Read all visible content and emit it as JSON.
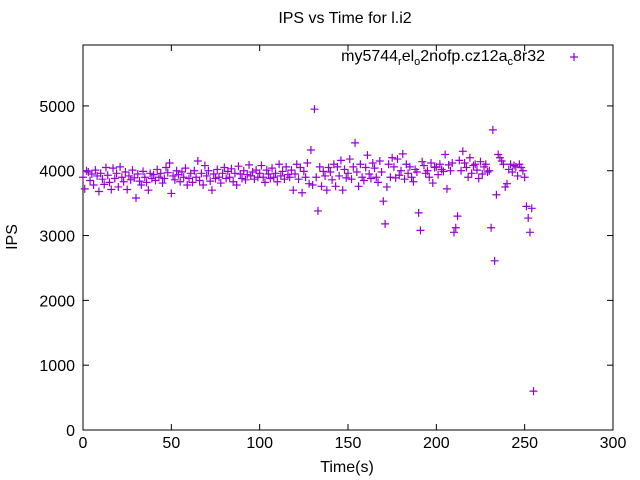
{
  "chart_data": {
    "type": "scatter",
    "title": "IPS vs Time for l.i2",
    "xlabel": "Time(s)",
    "ylabel": "IPS",
    "xlim": [
      0,
      300
    ],
    "ylim": [
      0,
      5940
    ],
    "xticks": [
      0,
      50,
      100,
      150,
      200,
      250,
      300
    ],
    "yticks": [
      0,
      1000,
      2000,
      3000,
      4000,
      5000
    ],
    "grid": false,
    "legend_position": "top-right",
    "series": [
      {
        "name": "my5744",
        "name_parts": [
          {
            "t": "my5744",
            "sub": false
          },
          {
            "t": "r",
            "sub": true
          },
          {
            "t": "el",
            "sub": false
          },
          {
            "t": "o",
            "sub": true
          },
          {
            "t": "2nofp.cz12a",
            "sub": false
          },
          {
            "t": "c",
            "sub": true
          },
          {
            "t": "8r32",
            "sub": false
          }
        ],
        "color": "#9400d3",
        "marker": "plus",
        "x_start": 0,
        "x_step": 1,
        "values": [
          3900,
          3720,
          4000,
          3980,
          3850,
          3950,
          3780,
          4010,
          3920,
          3680,
          3960,
          3870,
          3790,
          4050,
          3930,
          3820,
          3710,
          4040,
          3880,
          3960,
          3750,
          4060,
          3900,
          3830,
          3980,
          3710,
          3920,
          3860,
          4010,
          3890,
          3580,
          3950,
          3840,
          3780,
          3990,
          3900,
          3820,
          3700,
          3960,
          3880,
          3940,
          3850,
          4020,
          3900,
          3960,
          3810,
          3880,
          4050,
          3970,
          4120,
          3650,
          3920,
          3860,
          4000,
          3940,
          3830,
          3980,
          3900,
          4040,
          3780,
          3880,
          3960,
          3820,
          4000,
          3900,
          4150,
          3850,
          3960,
          3780,
          4080,
          3920,
          4000,
          3840,
          3700,
          3950,
          3880,
          4020,
          3900,
          3810,
          3960,
          4050,
          3880,
          3990,
          3900,
          4030,
          3830,
          3960,
          3780,
          4070,
          3950,
          3880,
          4000,
          3860,
          3940,
          4090,
          3920,
          3980,
          3870,
          4010,
          3900,
          3960,
          4080,
          3900,
          3820,
          4010,
          3950,
          3880,
          4040,
          3900,
          3960,
          3830,
          4100,
          3920,
          3990,
          3870,
          4060,
          3940,
          3900,
          4010,
          3700,
          3950,
          4100,
          3870,
          4050,
          3660,
          3990,
          3900,
          4120,
          3800,
          4320,
          3780,
          4950,
          3900,
          3380,
          4060,
          3760,
          3990,
          3920,
          3700,
          4050,
          3980,
          3860,
          4100,
          3760,
          4060,
          3920,
          4160,
          3700,
          4020,
          3890,
          3960,
          4180,
          3870,
          4060,
          4430,
          3980,
          3760,
          4100,
          3900,
          3850,
          4050,
          4240,
          3950,
          3880,
          4120,
          4040,
          3900,
          3820,
          4150,
          3980,
          3530,
          3180,
          3750,
          4100,
          3900,
          4200,
          4060,
          3890,
          4180,
          3930,
          4000,
          4260,
          3870,
          4100,
          3960,
          4060,
          3900,
          3830,
          4020,
          3980,
          3350,
          3080,
          4140,
          4080,
          3960,
          4000,
          3900,
          4120,
          3810,
          4050,
          4060,
          3940,
          4100,
          4020,
          3990,
          4250,
          3720,
          4090,
          4000,
          4120,
          3050,
          3120,
          3300,
          4160,
          4000,
          4300,
          4120,
          4050,
          3900,
          4200,
          3960,
          4080,
          4100,
          4010,
          3880,
          4140,
          3950,
          4060,
          4100,
          3980,
          4000,
          3120,
          4630,
          2610,
          3630,
          4250,
          4200,
          4150,
          4100,
          3750,
          3800,
          4020,
          4100,
          3980,
          4080,
          4060,
          3920,
          4100,
          4050,
          4000,
          3900,
          3450,
          3270,
          3050,
          3420,
          600
        ]
      }
    ]
  }
}
